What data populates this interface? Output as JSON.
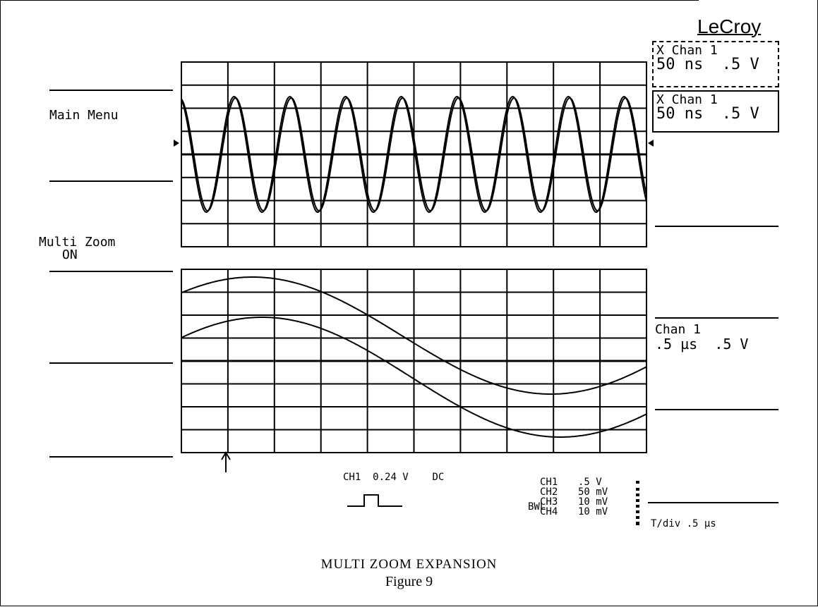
{
  "brand": "LeCroy",
  "left_menu": {
    "main_menu": "Main Menu",
    "multi_zoom_label": "Multi Zoom",
    "multi_zoom_state": "ON"
  },
  "trace_panels": [
    {
      "line1": "X Chan 1",
      "timebase": "50 ns",
      "volts": ".5 V"
    },
    {
      "line1": "X Chan 1",
      "timebase": "50 ns",
      "volts": ".5 V"
    },
    {
      "line1": "Chan 1",
      "timebase": ".5 µs",
      "volts": ".5 V"
    }
  ],
  "trigger": {
    "channel": "CH1",
    "level": "0.24 V",
    "coupling": "DC"
  },
  "channel_settings": {
    "bwl": "BWL",
    "rows": [
      {
        "ch": "CH1",
        "val": ".5 V"
      },
      {
        "ch": "CH2",
        "val": "50 mV"
      },
      {
        "ch": "CH3",
        "val": "10 mV"
      },
      {
        "ch": "CH4",
        "val": "10 mV"
      }
    ]
  },
  "timebase_readout": "T/div .5 µs",
  "caption": {
    "title": "MULTI ZOOM EXPANSION",
    "figure": "Figure 9"
  }
}
